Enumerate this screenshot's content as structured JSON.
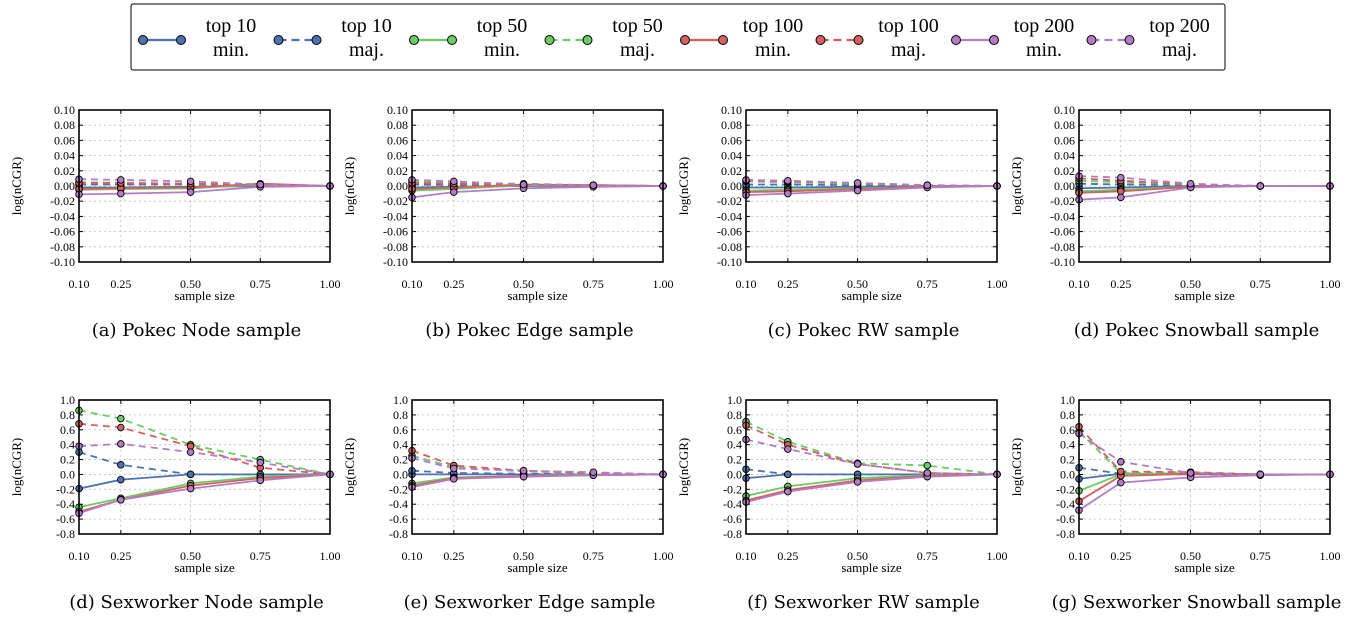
{
  "legend": {
    "entries": [
      {
        "line1": "top 10",
        "line2": "min.",
        "color": "#4c72b0",
        "dashed": false
      },
      {
        "line1": "top 10",
        "line2": "maj.",
        "color": "#4c72b0",
        "dashed": true
      },
      {
        "line1": "top 50",
        "line2": "min.",
        "color": "#6acc65",
        "dashed": false
      },
      {
        "line1": "top 50",
        "line2": "maj.",
        "color": "#6acc65",
        "dashed": true
      },
      {
        "line1": "top 100",
        "line2": "min.",
        "color": "#d65f5f",
        "dashed": false
      },
      {
        "line1": "top 100",
        "line2": "maj.",
        "color": "#d65f5f",
        "dashed": true
      },
      {
        "line1": "top 200",
        "line2": "min.",
        "color": "#b47cc7",
        "dashed": false
      },
      {
        "line1": "top 200",
        "line2": "maj.",
        "color": "#b47cc7",
        "dashed": true
      }
    ]
  },
  "chart_data": [
    {
      "type": "line",
      "caption": "(a) Pokec Node sample",
      "xlabel": "sample size",
      "ylabel": "log(nCGR)",
      "x": [
        0.1,
        0.25,
        0.5,
        0.75,
        1.0
      ],
      "ylim": [
        -0.1,
        0.1
      ],
      "grid": true,
      "xticks": [
        "0.10",
        "0.25",
        "0.50",
        "0.75",
        "1.00"
      ],
      "yticks": [
        "-0.10",
        "-0.08",
        "-0.06",
        "-0.04",
        "-0.02",
        "0.00",
        "0.02",
        "0.04",
        "0.06",
        "0.08",
        "0.10"
      ],
      "series": [
        {
          "name": "top 10 min.",
          "values": [
            -0.002,
            -0.002,
            -0.001,
            0.0,
            0.0
          ]
        },
        {
          "name": "top 10 maj.",
          "values": [
            0.002,
            0.002,
            0.002,
            0.001,
            0.0
          ]
        },
        {
          "name": "top 50 min.",
          "values": [
            -0.005,
            -0.004,
            -0.003,
            0.002,
            0.0
          ]
        },
        {
          "name": "top 50 maj.",
          "values": [
            0.005,
            0.004,
            0.003,
            0.002,
            0.0
          ]
        },
        {
          "name": "top 100 min.",
          "values": [
            -0.004,
            -0.003,
            -0.002,
            0.003,
            0.0
          ]
        },
        {
          "name": "top 100 maj.",
          "values": [
            0.004,
            0.004,
            0.003,
            0.002,
            0.0
          ]
        },
        {
          "name": "top 200 min.",
          "values": [
            -0.011,
            -0.01,
            -0.008,
            -0.001,
            0.0
          ]
        },
        {
          "name": "top 200 maj.",
          "values": [
            0.009,
            0.008,
            0.006,
            0.002,
            0.0
          ]
        }
      ]
    },
    {
      "type": "line",
      "caption": "(b) Pokec Edge sample",
      "xlabel": "sample size",
      "ylabel": "log(nCGR)",
      "x": [
        0.1,
        0.25,
        0.5,
        0.75,
        1.0
      ],
      "ylim": [
        -0.1,
        0.1
      ],
      "grid": true,
      "xticks": [
        "0.10",
        "0.25",
        "0.50",
        "0.75",
        "1.00"
      ],
      "yticks": [
        "-0.10",
        "-0.08",
        "-0.06",
        "-0.04",
        "-0.02",
        "0.00",
        "0.02",
        "0.04",
        "0.06",
        "0.08",
        "0.10"
      ],
      "series": [
        {
          "name": "top 10 min.",
          "values": [
            -0.002,
            -0.001,
            0.0,
            0.0,
            0.0
          ]
        },
        {
          "name": "top 10 maj.",
          "values": [
            0.002,
            0.001,
            0.001,
            0.0,
            0.0
          ]
        },
        {
          "name": "top 50 min.",
          "values": [
            -0.006,
            -0.004,
            0.001,
            0.001,
            0.0
          ]
        },
        {
          "name": "top 50 maj.",
          "values": [
            0.006,
            0.004,
            0.003,
            0.001,
            0.0
          ]
        },
        {
          "name": "top 100 min.",
          "values": [
            -0.004,
            -0.002,
            0.002,
            0.001,
            0.0
          ]
        },
        {
          "name": "top 100 maj.",
          "values": [
            0.004,
            0.003,
            0.002,
            0.001,
            0.0
          ]
        },
        {
          "name": "top 200 min.",
          "values": [
            -0.015,
            -0.008,
            -0.003,
            -0.001,
            0.0
          ]
        },
        {
          "name": "top 200 maj.",
          "values": [
            0.008,
            0.006,
            0.002,
            0.001,
            0.0
          ]
        }
      ]
    },
    {
      "type": "line",
      "caption": "(c) Pokec RW sample",
      "xlabel": "sample size",
      "ylabel": "log(nCGR)",
      "x": [
        0.1,
        0.25,
        0.5,
        0.75,
        1.0
      ],
      "ylim": [
        -0.1,
        0.1
      ],
      "grid": true,
      "xticks": [
        "0.10",
        "0.25",
        "0.50",
        "0.75",
        "1.00"
      ],
      "yticks": [
        "-0.10",
        "-0.08",
        "-0.06",
        "-0.04",
        "-0.02",
        "0.00",
        "0.02",
        "0.04",
        "0.06",
        "0.08",
        "0.10"
      ],
      "series": [
        {
          "name": "top 10 min.",
          "values": [
            -0.002,
            -0.002,
            -0.001,
            0.0,
            0.0
          ]
        },
        {
          "name": "top 10 maj.",
          "values": [
            0.002,
            0.002,
            0.001,
            0.0,
            0.0
          ]
        },
        {
          "name": "top 50 min.",
          "values": [
            -0.006,
            -0.005,
            -0.003,
            -0.001,
            0.0
          ]
        },
        {
          "name": "top 50 maj.",
          "values": [
            0.006,
            0.005,
            0.003,
            0.001,
            0.0
          ]
        },
        {
          "name": "top 100 min.",
          "values": [
            -0.008,
            -0.007,
            -0.004,
            -0.001,
            0.0
          ]
        },
        {
          "name": "top 100 maj.",
          "values": [
            0.007,
            0.006,
            0.004,
            0.001,
            0.0
          ]
        },
        {
          "name": "top 200 min.",
          "values": [
            -0.012,
            -0.01,
            -0.006,
            -0.002,
            0.0
          ]
        },
        {
          "name": "top 200 maj.",
          "values": [
            0.008,
            0.007,
            0.004,
            0.001,
            0.0
          ]
        }
      ]
    },
    {
      "type": "line",
      "caption": "(d) Pokec Snowball sample",
      "xlabel": "sample size",
      "ylabel": "log(nCGR)",
      "x": [
        0.1,
        0.25,
        0.5,
        0.75,
        1.0
      ],
      "ylim": [
        -0.1,
        0.1
      ],
      "grid": true,
      "xticks": [
        "0.10",
        "0.25",
        "0.50",
        "0.75",
        "1.00"
      ],
      "yticks": [
        "-0.10",
        "-0.08",
        "-0.06",
        "-0.04",
        "-0.02",
        "0.00",
        "0.02",
        "0.04",
        "0.06",
        "0.08",
        "0.10"
      ],
      "series": [
        {
          "name": "top 10 min.",
          "values": [
            -0.003,
            -0.002,
            0.0,
            0.0,
            0.0
          ]
        },
        {
          "name": "top 10 maj.",
          "values": [
            0.003,
            0.002,
            0.001,
            0.0,
            0.0
          ]
        },
        {
          "name": "top 50 min.",
          "values": [
            -0.007,
            -0.005,
            -0.001,
            0.0,
            0.0
          ]
        },
        {
          "name": "top 50 maj.",
          "values": [
            0.007,
            0.005,
            0.002,
            0.0,
            0.0
          ]
        },
        {
          "name": "top 100 min.",
          "values": [
            -0.009,
            -0.007,
            -0.001,
            0.0,
            0.0
          ]
        },
        {
          "name": "top 100 maj.",
          "values": [
            0.01,
            0.007,
            0.002,
            0.0,
            0.0
          ]
        },
        {
          "name": "top 200 min.",
          "values": [
            -0.018,
            -0.015,
            -0.002,
            0.0,
            0.0
          ]
        },
        {
          "name": "top 200 maj.",
          "values": [
            0.013,
            0.011,
            0.003,
            0.0,
            0.0
          ]
        }
      ]
    },
    {
      "type": "line",
      "caption": "(d) Sexworker Node sample",
      "xlabel": "sample size",
      "ylabel": "log(nCGR)",
      "x": [
        0.1,
        0.25,
        0.5,
        0.75,
        1.0
      ],
      "ylim": [
        -0.8,
        1.0
      ],
      "grid": true,
      "xticks": [
        "0.10",
        "0.25",
        "0.50",
        "0.75",
        "1.00"
      ],
      "yticks": [
        "-0.8",
        "-0.6",
        "-0.4",
        "-0.2",
        "0.0",
        "0.2",
        "0.4",
        "0.6",
        "0.8",
        "1.0"
      ],
      "series": [
        {
          "name": "top 10 min.",
          "values": [
            -0.19,
            -0.07,
            0.0,
            0.0,
            0.0
          ]
        },
        {
          "name": "top 10 maj.",
          "values": [
            0.3,
            0.13,
            0.0,
            0.0,
            0.0
          ]
        },
        {
          "name": "top 50 min.",
          "values": [
            -0.44,
            -0.32,
            -0.12,
            -0.03,
            0.0
          ]
        },
        {
          "name": "top 50 maj.",
          "values": [
            0.86,
            0.75,
            0.4,
            0.2,
            0.0
          ]
        },
        {
          "name": "top 100 min.",
          "values": [
            -0.5,
            -0.34,
            -0.15,
            -0.05,
            0.0
          ]
        },
        {
          "name": "top 100 maj.",
          "values": [
            0.68,
            0.63,
            0.38,
            0.09,
            0.0
          ]
        },
        {
          "name": "top 200 min.",
          "values": [
            -0.52,
            -0.34,
            -0.19,
            -0.08,
            0.0
          ]
        },
        {
          "name": "top 200 maj.",
          "values": [
            0.38,
            0.41,
            0.3,
            0.16,
            0.0
          ]
        }
      ]
    },
    {
      "type": "line",
      "caption": "(e) Sexworker Edge sample",
      "xlabel": "sample size",
      "ylabel": "log(nCGR)",
      "x": [
        0.1,
        0.25,
        0.5,
        0.75,
        1.0
      ],
      "ylim": [
        -0.8,
        1.0
      ],
      "grid": true,
      "xticks": [
        "0.10",
        "0.25",
        "0.50",
        "0.75",
        "1.00"
      ],
      "yticks": [
        "-0.8",
        "-0.6",
        "-0.4",
        "-0.2",
        "0.0",
        "0.2",
        "0.4",
        "0.6",
        "0.8",
        "1.0"
      ],
      "series": [
        {
          "name": "top 10 min.",
          "values": [
            0.0,
            0.0,
            0.0,
            0.0,
            0.0
          ]
        },
        {
          "name": "top 10 maj.",
          "values": [
            0.05,
            0.02,
            0.01,
            0.0,
            0.0
          ]
        },
        {
          "name": "top 50 min.",
          "values": [
            -0.12,
            -0.04,
            -0.02,
            0.0,
            0.0
          ]
        },
        {
          "name": "top 50 maj.",
          "values": [
            0.25,
            0.1,
            0.04,
            0.02,
            0.0
          ]
        },
        {
          "name": "top 100 min.",
          "values": [
            -0.15,
            -0.05,
            -0.02,
            -0.01,
            0.0
          ]
        },
        {
          "name": "top 100 maj.",
          "values": [
            0.32,
            0.12,
            0.05,
            0.02,
            0.0
          ]
        },
        {
          "name": "top 200 min.",
          "values": [
            -0.17,
            -0.06,
            -0.03,
            -0.01,
            0.0
          ]
        },
        {
          "name": "top 200 maj.",
          "values": [
            0.22,
            0.08,
            0.05,
            0.03,
            0.0
          ]
        }
      ]
    },
    {
      "type": "line",
      "caption": "(f) Sexworker RW sample",
      "xlabel": "sample size",
      "ylabel": "log(nCGR)",
      "x": [
        0.1,
        0.25,
        0.5,
        0.75,
        1.0
      ],
      "ylim": [
        -0.8,
        1.0
      ],
      "grid": true,
      "xticks": [
        "0.10",
        "0.25",
        "0.50",
        "0.75",
        "1.00"
      ],
      "yticks": [
        "-0.8",
        "-0.6",
        "-0.4",
        "-0.2",
        "0.0",
        "0.2",
        "0.4",
        "0.6",
        "0.8",
        "1.0"
      ],
      "series": [
        {
          "name": "top 10 min.",
          "values": [
            -0.05,
            0.0,
            0.0,
            0.0,
            0.0
          ]
        },
        {
          "name": "top 10 maj.",
          "values": [
            0.07,
            0.0,
            0.0,
            0.0,
            0.0
          ]
        },
        {
          "name": "top 50 min.",
          "values": [
            -0.29,
            -0.16,
            -0.05,
            -0.01,
            0.0
          ]
        },
        {
          "name": "top 50 maj.",
          "values": [
            0.71,
            0.44,
            0.15,
            0.12,
            0.0
          ]
        },
        {
          "name": "top 100 min.",
          "values": [
            -0.35,
            -0.21,
            -0.08,
            -0.02,
            0.0
          ]
        },
        {
          "name": "top 100 maj.",
          "values": [
            0.66,
            0.4,
            0.14,
            0.02,
            0.0
          ]
        },
        {
          "name": "top 200 min.",
          "values": [
            -0.37,
            -0.23,
            -0.1,
            -0.03,
            0.0
          ]
        },
        {
          "name": "top 200 maj.",
          "values": [
            0.47,
            0.34,
            0.14,
            0.02,
            0.0
          ]
        }
      ]
    },
    {
      "type": "line",
      "caption": "(g) Sexworker Snowball sample",
      "xlabel": "sample size",
      "ylabel": "log(nCGR)",
      "x": [
        0.1,
        0.25,
        0.5,
        0.75,
        1.0
      ],
      "ylim": [
        -0.8,
        1.0
      ],
      "grid": true,
      "xticks": [
        "0.10",
        "0.25",
        "0.50",
        "0.75",
        "1.00"
      ],
      "yticks": [
        "-0.8",
        "-0.6",
        "-0.4",
        "-0.2",
        "0.0",
        "0.2",
        "0.4",
        "0.6",
        "0.8",
        "1.0"
      ],
      "series": [
        {
          "name": "top 10 min.",
          "values": [
            -0.06,
            0.01,
            0.0,
            0.0,
            0.0
          ]
        },
        {
          "name": "top 10 maj.",
          "values": [
            0.09,
            0.01,
            0.0,
            0.0,
            0.0
          ]
        },
        {
          "name": "top 50 min.",
          "values": [
            -0.22,
            0.0,
            0.02,
            0.0,
            0.0
          ]
        },
        {
          "name": "top 50 maj.",
          "values": [
            0.58,
            0.02,
            0.03,
            0.0,
            0.0
          ]
        },
        {
          "name": "top 100 min.",
          "values": [
            -0.36,
            -0.02,
            0.01,
            0.0,
            0.0
          ]
        },
        {
          "name": "top 100 maj.",
          "values": [
            0.64,
            0.04,
            0.03,
            0.0,
            0.0
          ]
        },
        {
          "name": "top 200 min.",
          "values": [
            -0.48,
            -0.11,
            -0.04,
            -0.01,
            0.0
          ]
        },
        {
          "name": "top 200 maj.",
          "values": [
            0.55,
            0.17,
            0.02,
            0.0,
            0.0
          ]
        }
      ]
    }
  ]
}
